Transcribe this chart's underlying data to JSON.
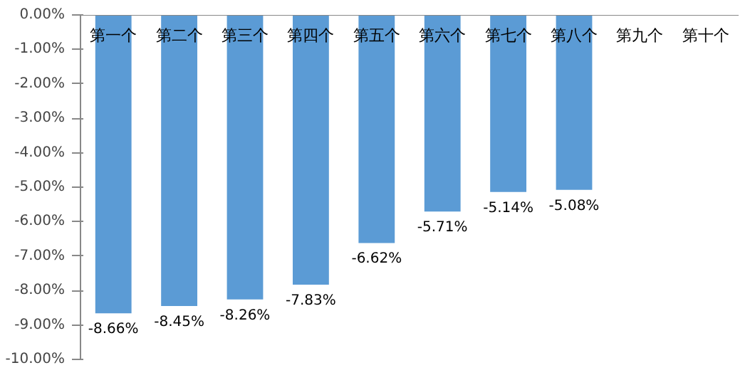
{
  "chart_data": {
    "type": "bar",
    "categories": [
      "第一个",
      "第二个",
      "第三个",
      "第四个",
      "第五个",
      "第六个",
      "第七个",
      "第八个",
      "第九个",
      "第十个"
    ],
    "values": [
      -8.66,
      -8.45,
      -8.26,
      -7.83,
      -6.62,
      -5.71,
      -5.14,
      -5.08,
      null,
      null
    ],
    "value_labels": [
      "-8.66%",
      "-8.45%",
      "-8.26%",
      "-7.83%",
      "-6.62%",
      "-5.71%",
      "-5.14%",
      "-5.08%",
      null,
      null
    ],
    "color": "#5b9bd5",
    "ylim": [
      -10,
      0
    ],
    "yticks": [
      {
        "value": 0,
        "label": "0.00%"
      },
      {
        "value": -1,
        "label": "-1.00%"
      },
      {
        "value": -2,
        "label": "-2.00%"
      },
      {
        "value": -3,
        "label": "-3.00%"
      },
      {
        "value": -4,
        "label": "-4.00%"
      },
      {
        "value": -5,
        "label": "-5.00%"
      },
      {
        "value": -6,
        "label": "-6.00%"
      },
      {
        "value": -7,
        "label": "-7.00%"
      },
      {
        "value": -8,
        "label": "-8.00%"
      },
      {
        "value": -9,
        "label": "-9.00%"
      },
      {
        "value": -10,
        "label": "-10.00%"
      }
    ],
    "grid": false
  }
}
